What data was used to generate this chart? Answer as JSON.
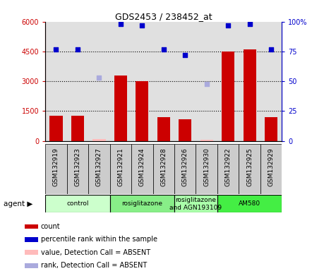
{
  "title": "GDS2453 / 238452_at",
  "samples": [
    "GSM132919",
    "GSM132923",
    "GSM132927",
    "GSM132921",
    "GSM132924",
    "GSM132928",
    "GSM132926",
    "GSM132930",
    "GSM132922",
    "GSM132925",
    "GSM132929"
  ],
  "counts": [
    1250,
    1280,
    null,
    3300,
    3000,
    1200,
    1100,
    null,
    4500,
    4600,
    1200
  ],
  "counts_absent": [
    null,
    null,
    80,
    null,
    null,
    null,
    null,
    60,
    null,
    null,
    null
  ],
  "ranks": [
    77,
    77,
    null,
    98,
    97,
    77,
    72,
    null,
    97,
    98,
    77
  ],
  "ranks_absent": [
    null,
    null,
    53,
    null,
    null,
    null,
    null,
    48,
    null,
    null,
    null
  ],
  "ylim_left": [
    0,
    6000
  ],
  "ylim_right": [
    0,
    100
  ],
  "yticks_left": [
    0,
    1500,
    3000,
    4500,
    6000
  ],
  "ytick_labels_left": [
    "0",
    "1500",
    "3000",
    "4500",
    "6000"
  ],
  "yticks_right": [
    0,
    25,
    50,
    75,
    100
  ],
  "ytick_labels_right": [
    "0",
    "25",
    "50",
    "75",
    "100%"
  ],
  "groups": [
    {
      "label": "control",
      "start": 0,
      "end": 3,
      "color": "#ccffcc"
    },
    {
      "label": "rosiglitazone",
      "start": 3,
      "end": 6,
      "color": "#88ee88"
    },
    {
      "label": "rosiglitazone\nand AGN193109",
      "start": 6,
      "end": 8,
      "color": "#aaffaa"
    },
    {
      "label": "AM580",
      "start": 8,
      "end": 11,
      "color": "#44ee44"
    }
  ],
  "bar_color": "#cc0000",
  "absent_bar_color": "#ffbbbb",
  "rank_color": "#0000cc",
  "absent_rank_color": "#aaaadd",
  "sample_bg_color": "#cccccc",
  "bg_color": "#e0e0e0",
  "agent_label": "agent",
  "legend_items": [
    {
      "label": "count",
      "color": "#cc0000"
    },
    {
      "label": "percentile rank within the sample",
      "color": "#0000cc"
    },
    {
      "label": "value, Detection Call = ABSENT",
      "color": "#ffbbbb"
    },
    {
      "label": "rank, Detection Call = ABSENT",
      "color": "#aaaadd"
    }
  ]
}
